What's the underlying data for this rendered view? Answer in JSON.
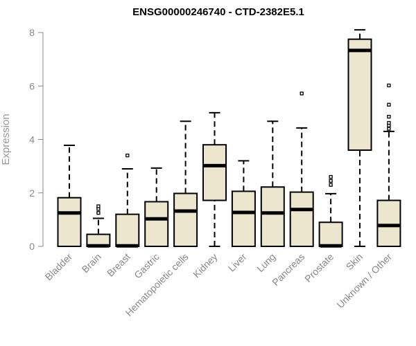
{
  "chart_data": {
    "type": "boxplot",
    "title": "ENSG00000246740 - CTD-2382E5.1",
    "ylabel": "Expression",
    "xlabel": "",
    "ylim": [
      0,
      8
    ],
    "yticks": [
      0,
      2,
      4,
      6,
      8
    ],
    "grid": false,
    "box_color": "#ede6cf",
    "categories": [
      "Bladder",
      "Brain",
      "Breast",
      "Gastric",
      "Hematopoietic cells",
      "Kidney",
      "Liver",
      "Lung",
      "Pancreas",
      "Prostate",
      "Skin",
      "Unknown / Other"
    ],
    "series": [
      {
        "min": 0,
        "q1": 0,
        "median": 1.25,
        "q3": 1.82,
        "max": 3.78,
        "outliers": []
      },
      {
        "min": 0,
        "q1": 0,
        "median": 0.02,
        "q3": 0.45,
        "max": 1.05,
        "outliers": [
          1.25,
          1.4,
          1.5
        ]
      },
      {
        "min": 0,
        "q1": 0,
        "median": 0.02,
        "q3": 1.2,
        "max": 2.9,
        "outliers": [
          3.4
        ]
      },
      {
        "min": 0,
        "q1": 0,
        "median": 1.03,
        "q3": 1.67,
        "max": 2.93,
        "outliers": []
      },
      {
        "min": 0,
        "q1": 0,
        "median": 1.32,
        "q3": 1.98,
        "max": 4.68,
        "outliers": []
      },
      {
        "min": 0,
        "q1": 1.72,
        "median": 3.02,
        "q3": 3.8,
        "max": 5.0,
        "outliers": []
      },
      {
        "min": 0,
        "q1": 0,
        "median": 1.27,
        "q3": 2.06,
        "max": 3.2,
        "outliers": []
      },
      {
        "min": 0,
        "q1": 0,
        "median": 1.25,
        "q3": 2.22,
        "max": 4.68,
        "outliers": []
      },
      {
        "min": 0,
        "q1": 0,
        "median": 1.38,
        "q3": 2.03,
        "max": 4.43,
        "outliers": [
          5.72
        ]
      },
      {
        "min": 0,
        "q1": 0,
        "median": 0.02,
        "q3": 0.9,
        "max": 1.97,
        "outliers": [
          2.3,
          2.45,
          2.6
        ]
      },
      {
        "min": 0,
        "q1": 3.6,
        "median": 7.33,
        "q3": 7.75,
        "max": 8.1,
        "outliers": []
      },
      {
        "min": 0,
        "q1": 0,
        "median": 0.78,
        "q3": 1.72,
        "max": 4.3,
        "outliers": [
          4.4,
          4.52,
          4.62,
          4.85,
          5.3,
          6.02
        ]
      }
    ]
  }
}
